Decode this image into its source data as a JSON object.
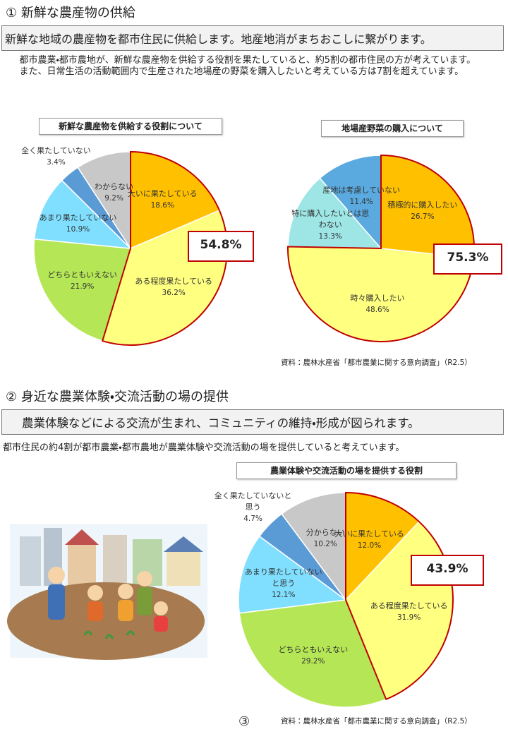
{
  "sections": [
    {
      "heading": "① 新鮮な農産物の供給",
      "banner": "新鮮な地域の農産物を都市住民に供給します。地産地消がまちおこしに繋がります。",
      "paragraphs": [
        "都市農業・都市農地が、新鮮な農産物を供給する役割を果たしていると、約5割の都市住民の方が考えています。",
        "また、日常生活の活動範囲内で生産された地場産の野菜を購入したいと考えている方は7割を超えています。"
      ],
      "source": "資料：農林水産省「都市農業に関する意向調査」（R2.5）"
    },
    {
      "heading": "② 身近な農業体験・交流活動の場の提供",
      "banner": "農業体験などによる交流が生まれ、コミュニティの維持・形成が図られます。",
      "paragraphs": [
        "都市住民の約4割が都市農業・都市農地が農業体験や交流活動の場を提供していると考えています。"
      ],
      "source": "資料：農林水産省「都市農業に関する意向調査」（R2.5）"
    }
  ],
  "page_number": "③",
  "chart_data": [
    {
      "type": "pie",
      "title": "新鮮な農産物を供給する役割について",
      "categories": [
        "大いに果たしている",
        "ある程度果たしている",
        "どちらともいえない",
        "あまり果たしていない",
        "全く果たしていない",
        "わからない"
      ],
      "values": [
        18.6,
        36.2,
        21.9,
        10.9,
        3.4,
        9.2
      ],
      "value_labels": [
        "18.6%",
        "36.2%",
        "21.9%",
        "10.9%",
        "3.4%",
        "9.2%"
      ],
      "colors": [
        "#ffc000",
        "#ffff80",
        "#b5e655",
        "#80dfff",
        "#5b9bd5",
        "#c8c8c8"
      ],
      "callout": "54.8%"
    },
    {
      "type": "pie",
      "title": "地場産野菜の購入について",
      "categories": [
        "積極的に購入したい",
        "時々購入したい",
        "特に購入したいとは思わない",
        "産地は考慮していない"
      ],
      "values": [
        26.7,
        48.6,
        13.3,
        11.4
      ],
      "value_labels": [
        "26.7%",
        "48.6%",
        "13.3%",
        "11.4%"
      ],
      "colors": [
        "#ffc000",
        "#ffff80",
        "#9ee6e6",
        "#5aaae0"
      ],
      "callout": "75.3%"
    },
    {
      "type": "pie",
      "title": "農業体験や交流活動の場を提供する役割",
      "categories": [
        "大いに果たしている",
        "ある程度果たしている",
        "どちらともいえない",
        "あまり果たしていないと思う",
        "全く果たしていないと思う",
        "分からない"
      ],
      "values": [
        12,
        31.9,
        29.2,
        12.1,
        4.7,
        10.2
      ],
      "value_labels": [
        "12.0%",
        "31.9%",
        "29.2%",
        "12.1%",
        "4.7%",
        "10.2%"
      ],
      "colors": [
        "#ffc000",
        "#ffff80",
        "#b5e655",
        "#80dfff",
        "#5b9bd5",
        "#c8c8c8"
      ],
      "callout": "43.9%"
    }
  ]
}
